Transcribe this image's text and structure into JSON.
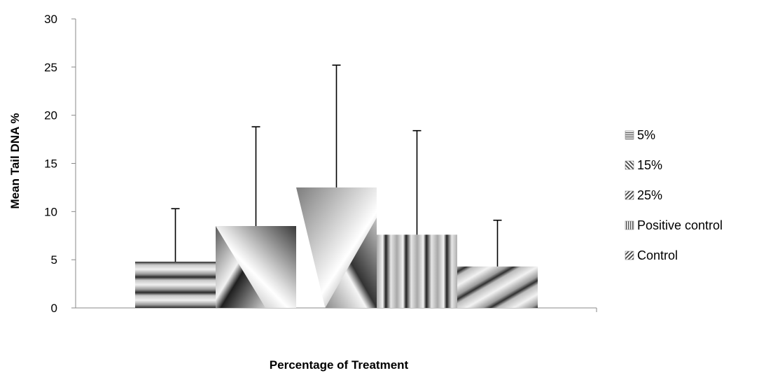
{
  "chart_data": {
    "type": "bar",
    "title": "",
    "xlabel": "Percentage of Treatment",
    "ylabel": "Mean Tail DNA %",
    "ylim": [
      0,
      30
    ],
    "yticks": [
      "0",
      "5",
      "10",
      "15",
      "20",
      "25",
      "30"
    ],
    "grid": false,
    "legend_position": "right",
    "series": [
      {
        "name": "5%",
        "value": 4.8,
        "error": 5.5,
        "pattern": "horizontal-bands"
      },
      {
        "name": "15%",
        "value": 8.5,
        "error": 10.3,
        "pattern": "diagonal-v"
      },
      {
        "name": "25%",
        "value": 12.5,
        "error": 12.7,
        "pattern": "diagonal-v-reverse"
      },
      {
        "name": "Positive control",
        "value": 7.6,
        "error": 10.8,
        "pattern": "vertical-bands"
      },
      {
        "name": "Control",
        "value": 4.3,
        "error": 4.8,
        "pattern": "diagonal-stripes"
      }
    ]
  }
}
